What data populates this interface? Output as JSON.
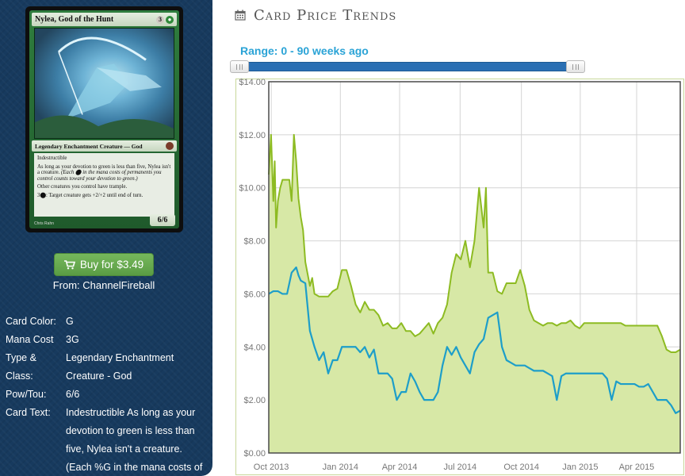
{
  "card": {
    "name": "Nylea, God of the Hunt",
    "mana_generic": "3",
    "type_line": "Legendary Enchantment Creature — God",
    "text_line1": "Indestructible",
    "text_line2": "As long as your devotion to green is less than five, Nylea isn't a creature.",
    "text_line2_reminder": "(Each ⬤ in the mana costs of permanents you control counts toward your devotion to green.)",
    "text_line3": "Other creatures you control have trample.",
    "text_line4": "3⬤: Target creature gets +2/+2 until end of turn.",
    "artist": "Chris Rahn",
    "pt": "6/6"
  },
  "buy_button": {
    "label": "Buy for $3.49"
  },
  "from_line": "From: ChannelFireball",
  "details": [
    {
      "label": "Card Color:",
      "value": "G"
    },
    {
      "label": "Mana Cost",
      "value": "3G"
    },
    {
      "label": "Type & Class:",
      "value": "Legendary Enchantment Creature - God"
    },
    {
      "label": "Pow/Tou:",
      "value": "6/6"
    },
    {
      "label": "Card Text:",
      "value": "Indestructible As long as your devotion to green is less than five, Nylea isn't a creature. (Each %G in the mana costs of"
    }
  ],
  "panel": {
    "title": "Card Price Trends",
    "range_label": "Range: 0 - 90 weeks ago"
  },
  "colors": {
    "sidebar": "#173a5e",
    "paper_line": "#8dbb22",
    "paper_fill": "#d7e8a6",
    "foil_line": "#1d9ec9",
    "range_text": "#2aa3d6"
  },
  "chart_data": {
    "type": "area",
    "x_tick_labels": [
      "Oct 2013",
      "Jan 2014",
      "Apr 2014",
      "Jul 2014",
      "Oct 2014",
      "Jan 2015",
      "Apr 2015"
    ],
    "y_tick_labels": [
      "$0.00",
      "$2.00",
      "$4.00",
      "$6.00",
      "$8.00",
      "$10.00",
      "$12.00",
      "$14.00"
    ],
    "ylim": [
      0,
      14
    ],
    "x_range_weeks": [
      0,
      90
    ],
    "grid": true,
    "series": [
      {
        "x": [
          0,
          0.5,
          1,
          1.3,
          1.6,
          2,
          2.5,
          3,
          3.5,
          4,
          4.5,
          5,
          5.5,
          6,
          6.5,
          7,
          7.5,
          8,
          9,
          9.5,
          10,
          11,
          12,
          13,
          14,
          15,
          16,
          17,
          18,
          19,
          20,
          21,
          22,
          23,
          24,
          25,
          26,
          27,
          28,
          29,
          30,
          31,
          32,
          33,
          34,
          35,
          36,
          37,
          38,
          39,
          40,
          41,
          42,
          43,
          44,
          45,
          46,
          47,
          47.5,
          48,
          49,
          50,
          51,
          52,
          53,
          54,
          55,
          56,
          57,
          58,
          59,
          60,
          61,
          62,
          63,
          64,
          65,
          66,
          67,
          68,
          69,
          70,
          71,
          72,
          73,
          74,
          75,
          76,
          77,
          78,
          79,
          80,
          81,
          82,
          83,
          84,
          85,
          86,
          87,
          88,
          89,
          90
        ],
        "y": [
          10.5,
          12.0,
          9.5,
          11.0,
          8.5,
          9.5,
          10.0,
          10.3,
          10.3,
          10.3,
          10.3,
          9.5,
          12.0,
          11.0,
          9.6,
          8.9,
          8.4,
          7.2,
          6.3,
          6.6,
          6.0,
          5.9,
          5.9,
          5.9,
          6.1,
          6.2,
          6.9,
          6.9,
          6.3,
          5.6,
          5.3,
          5.7,
          5.4,
          5.4,
          5.2,
          4.8,
          4.9,
          4.7,
          4.7,
          4.9,
          4.6,
          4.6,
          4.4,
          4.5,
          4.7,
          4.9,
          4.5,
          4.9,
          5.1,
          5.6,
          6.8,
          7.5,
          7.3,
          8.0,
          7.0,
          8.0,
          10.0,
          8.5,
          10.0,
          6.8,
          6.8,
          6.1,
          6.0,
          6.4,
          6.4,
          6.4,
          6.9,
          6.3,
          5.4,
          5.0,
          4.9,
          4.8,
          4.9,
          4.9,
          4.8,
          4.9,
          4.9,
          5.0,
          4.8,
          4.7,
          4.9,
          4.9,
          4.9,
          4.9,
          4.9,
          4.9,
          4.9,
          4.9,
          4.9,
          4.8,
          4.8,
          4.8,
          4.8,
          4.8,
          4.8,
          4.8,
          4.8,
          4.4,
          3.9,
          3.8,
          3.8,
          3.9
        ]
      },
      {
        "x": [
          0,
          1,
          2,
          3,
          4,
          5,
          6,
          6.5,
          7,
          8,
          9,
          10,
          11,
          12,
          13,
          14,
          15,
          16,
          17,
          18,
          19,
          20,
          21,
          22,
          23,
          24,
          25,
          26,
          27,
          28,
          29,
          30,
          31,
          32,
          33,
          34,
          35,
          36,
          37,
          38,
          39,
          40,
          41,
          42,
          43,
          44,
          45,
          46,
          47,
          48,
          49,
          50,
          51,
          52,
          53,
          54,
          55,
          56,
          57,
          58,
          59,
          60,
          61,
          62,
          63,
          64,
          65,
          66,
          67,
          68,
          69,
          70,
          71,
          72,
          73,
          74,
          75,
          76,
          77,
          78,
          79,
          80,
          81,
          82,
          83,
          84,
          85,
          86,
          87,
          88,
          89,
          90
        ],
        "y": [
          6.0,
          6.1,
          6.1,
          6.0,
          6.0,
          6.8,
          7.0,
          6.7,
          6.5,
          6.4,
          4.6,
          4.0,
          3.5,
          3.8,
          3.0,
          3.5,
          3.5,
          4.0,
          4.0,
          4.0,
          4.0,
          3.8,
          4.0,
          3.6,
          3.9,
          3.0,
          3.0,
          3.0,
          2.8,
          2.0,
          2.3,
          2.3,
          3.0,
          2.7,
          2.3,
          2.0,
          2.0,
          2.0,
          2.3,
          3.3,
          4.0,
          3.7,
          4.0,
          3.6,
          3.3,
          3.0,
          3.8,
          4.1,
          4.3,
          5.1,
          5.2,
          5.3,
          4.0,
          3.5,
          3.4,
          3.3,
          3.3,
          3.3,
          3.2,
          3.1,
          3.1,
          3.1,
          3.0,
          2.9,
          2.0,
          2.9,
          3.0,
          3.0,
          3.0,
          3.0,
          3.0,
          3.0,
          3.0,
          3.0,
          3.0,
          2.8,
          2.0,
          2.7,
          2.6,
          2.6,
          2.6,
          2.6,
          2.5,
          2.5,
          2.6,
          2.3,
          2.0,
          2.0,
          2.0,
          1.8,
          1.5,
          1.6
        ]
      }
    ]
  }
}
